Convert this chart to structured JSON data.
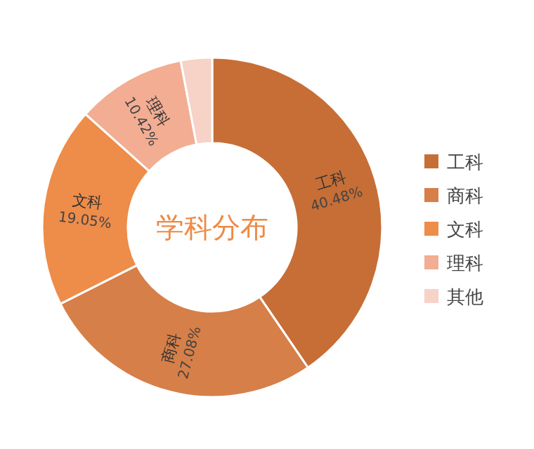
{
  "chart_data": {
    "type": "donut",
    "title": "学科分布",
    "categories": [
      "工科",
      "商科",
      "文科",
      "理科",
      "其他"
    ],
    "values": [
      40.48,
      27.08,
      19.05,
      10.42,
      2.97
    ],
    "colors": [
      "#c66e36",
      "#d67f48",
      "#ee8c4a",
      "#f2ad92",
      "#f7d2c7"
    ],
    "value_labels": [
      "40.48%",
      "27.08%",
      "19.05%",
      "10.42%",
      null
    ],
    "legend": "right"
  }
}
